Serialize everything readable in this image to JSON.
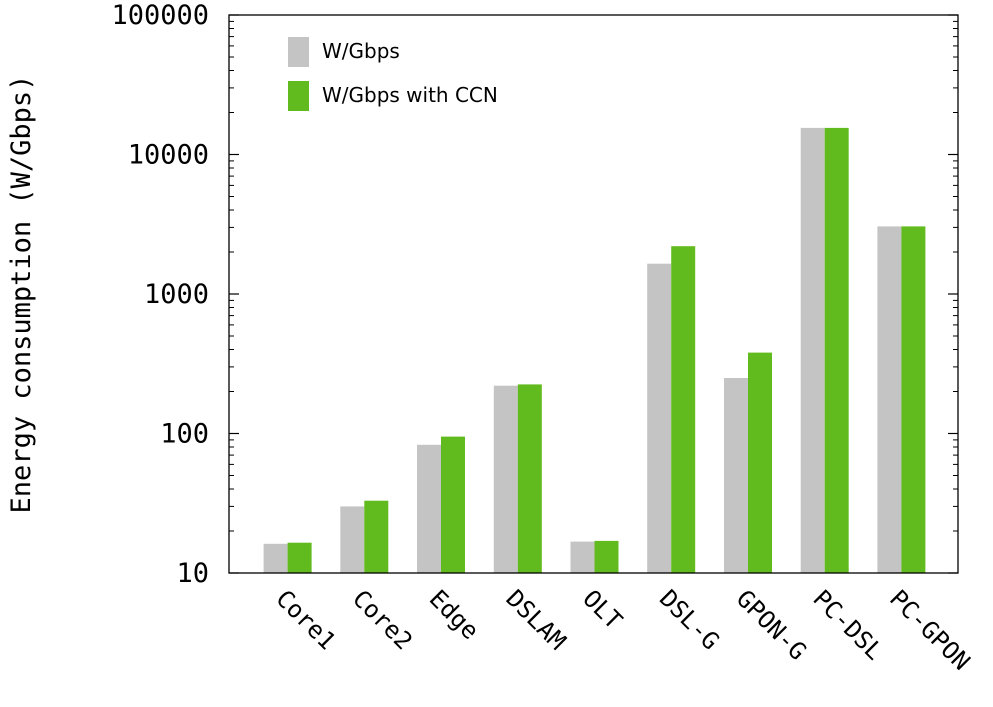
{
  "chart_data": {
    "type": "bar",
    "title": "",
    "xlabel": "",
    "ylabel": "Energy consumption (W/Gbps)",
    "yscale": "log",
    "ylim": [
      10,
      100000
    ],
    "yticks": [
      10,
      100,
      1000,
      10000,
      100000
    ],
    "ytick_labels": [
      "10",
      "100",
      "1000",
      "10000",
      "100000"
    ],
    "grid": false,
    "legend_position": "top-left",
    "categories": [
      "Core1",
      "Core2",
      "Edge",
      "DSLAM",
      "OLT",
      "DSL-G",
      "GPON-G",
      "PC-DSL",
      "PC-GPON"
    ],
    "series": [
      {
        "name": "W/Gbps",
        "color": "#c4c4c4",
        "values": [
          16.2,
          30,
          83,
          220,
          16.8,
          1650,
          250,
          15500,
          3050
        ]
      },
      {
        "name": "W/Gbps with CCN",
        "color": "#62bb1e",
        "values": [
          16.5,
          33,
          95,
          225,
          17,
          2200,
          380,
          15500,
          3050
        ]
      }
    ]
  }
}
